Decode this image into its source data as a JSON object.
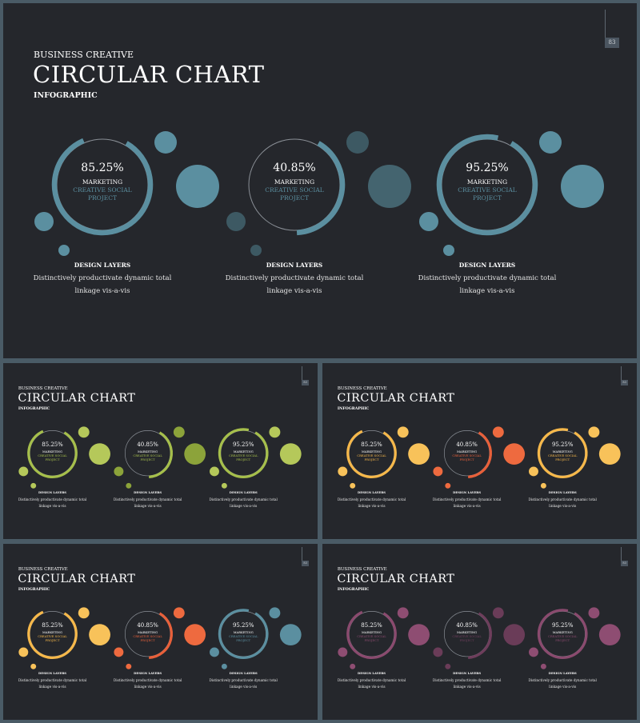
{
  "slides": [
    {
      "id": "main",
      "page_number": "83",
      "subtitle": "BUSINESS CREATIVE",
      "title": "CIRCULAR CHART",
      "tagline": "INFOGRAPHIC",
      "colors": {
        "accent": [
          "#5b8fa0",
          "#5b8fa0",
          "#5b8fa0"
        ],
        "mid": [
          "#5b8fa0",
          "#44646f",
          "#5b8fa0"
        ],
        "soft": [
          "#5b8fa0",
          "#3d5963",
          "#5b8fa0"
        ]
      },
      "charts": [
        {
          "percent": "85.25%",
          "value": 85.25,
          "line1": "MARKETING",
          "line2": "CREATIVE SOCIAL",
          "line3": "PROJECT",
          "label": "DESIGN LAYERS",
          "desc1": "Distinctively productivate dynamic total",
          "desc2": "linkage vis-a-vis"
        },
        {
          "percent": "40.85%",
          "value": 40.85,
          "line1": "MARKETING",
          "line2": "CREATIVE SOCIAL",
          "line3": "PROJECT",
          "label": "DESIGN LAYERS",
          "desc1": "Distinctively productivate dynamic total",
          "desc2": "linkage vis-a-vis"
        },
        {
          "percent": "95.25%",
          "value": 95.25,
          "line1": "MARKETING",
          "line2": "CREATIVE SOCIAL",
          "line3": "PROJECT",
          "label": "DESIGN LAYERS",
          "desc1": "Distinctively productivate dynamic total",
          "desc2": "linkage vis-a-vis"
        }
      ]
    },
    {
      "id": "green",
      "page_number": "83",
      "subtitle": "BUSINESS CREATIVE",
      "title": "CIRCULAR CHART",
      "tagline": "INFOGRAPHIC",
      "colors": {
        "accent": [
          "#a6bf4b",
          "#a6bf4b",
          "#a6bf4b"
        ],
        "mid": [
          "#b5c85a",
          "#8ca33a",
          "#b5c85a"
        ],
        "soft": [
          "#b5c85a",
          "#8ca33a",
          "#b5c85a"
        ]
      },
      "charts": [
        {
          "percent": "85.25%",
          "value": 85.25,
          "line1": "MARKETING",
          "line2": "CREATIVE SOCIAL",
          "line3": "PROJECT",
          "label": "DESIGN LAYERS",
          "desc1": "Distinctively productivate dynamic total",
          "desc2": "linkage vis-a-vis"
        },
        {
          "percent": "40.85%",
          "value": 40.85,
          "line1": "MARKETING",
          "line2": "CREATIVE SOCIAL",
          "line3": "PROJECT",
          "label": "DESIGN LAYERS",
          "desc1": "Distinctively productivate dynamic total",
          "desc2": "linkage vis-a-vis"
        },
        {
          "percent": "95.25%",
          "value": 95.25,
          "line1": "MARKETING",
          "line2": "CREATIVE SOCIAL",
          "line3": "PROJECT",
          "label": "DESIGN LAYERS",
          "desc1": "Distinctively productivate dynamic total",
          "desc2": "linkage vis-a-vis"
        }
      ]
    },
    {
      "id": "orange",
      "page_number": "83",
      "subtitle": "BUSINESS CREATIVE",
      "title": "CIRCULAR CHART",
      "tagline": "INFOGRAPHIC",
      "colors": {
        "accent": [
          "#f6b84a",
          "#e8603a",
          "#f6b84a"
        ],
        "mid": [
          "#f8c25a",
          "#ee6a3f",
          "#f8c25a"
        ],
        "soft": [
          "#f8c25a",
          "#ee6a3f",
          "#f8c25a"
        ]
      },
      "charts": [
        {
          "percent": "85.25%",
          "value": 85.25,
          "line1": "MARKETING",
          "line2": "CREATIVE SOCIAL",
          "line3": "PROJECT",
          "label": "DESIGN LAYERS",
          "desc1": "Distinctively productivate dynamic total",
          "desc2": "linkage vis-a-vis"
        },
        {
          "percent": "40.85%",
          "value": 40.85,
          "line1": "MARKETING",
          "line2": "CREATIVE SOCIAL",
          "line3": "PROJECT",
          "label": "DESIGN LAYERS",
          "desc1": "Distinctively productivate dynamic total",
          "desc2": "linkage vis-a-vis"
        },
        {
          "percent": "95.25%",
          "value": 95.25,
          "line1": "MARKETING",
          "line2": "CREATIVE SOCIAL",
          "line3": "PROJECT",
          "label": "DESIGN LAYERS",
          "desc1": "Distinctively productivate dynamic total",
          "desc2": "linkage vis-a-vis"
        }
      ]
    },
    {
      "id": "mixed",
      "page_number": "83",
      "subtitle": "BUSINESS CREATIVE",
      "title": "CIRCULAR CHART",
      "tagline": "INFOGRAPHIC",
      "colors": {
        "accent": [
          "#f6b84a",
          "#e8603a",
          "#5b8fa0"
        ],
        "mid": [
          "#f8c25a",
          "#ee6a3f",
          "#5b8fa0"
        ],
        "soft": [
          "#f8c25a",
          "#ee6a3f",
          "#5b8fa0"
        ]
      },
      "charts": [
        {
          "percent": "85.25%",
          "value": 85.25,
          "line1": "MARKETING",
          "line2": "CREATIVE SOCIAL",
          "line3": "PROJECT",
          "label": "DESIGN LAYERS",
          "desc1": "Distinctively productivate dynamic total",
          "desc2": "linkage vis-a-vis"
        },
        {
          "percent": "40.85%",
          "value": 40.85,
          "line1": "MARKETING",
          "line2": "CREATIVE SOCIAL",
          "line3": "PROJECT",
          "label": "DESIGN LAYERS",
          "desc1": "Distinctively productivate dynamic total",
          "desc2": "linkage vis-a-vis"
        },
        {
          "percent": "95.25%",
          "value": 95.25,
          "line1": "MARKETING",
          "line2": "CREATIVE SOCIAL",
          "line3": "PROJECT",
          "label": "DESIGN LAYERS",
          "desc1": "Distinctively productivate dynamic total",
          "desc2": "linkage vis-a-vis"
        }
      ]
    },
    {
      "id": "purple",
      "page_number": "83",
      "subtitle": "BUSINESS CREATIVE",
      "title": "CIRCULAR CHART",
      "tagline": "INFOGRAPHIC",
      "colors": {
        "accent": [
          "#8a4a6e",
          "#6e3e5c",
          "#8a4a6e"
        ],
        "mid": [
          "#8e4d72",
          "#6a3c58",
          "#8e4d72"
        ],
        "soft": [
          "#8e4d72",
          "#6a3c58",
          "#8e4d72"
        ]
      },
      "charts": [
        {
          "percent": "85.25%",
          "value": 85.25,
          "line1": "MARKETING",
          "line2": "CREATIVE SOCIAL",
          "line3": "PROJECT",
          "label": "DESIGN LAYERS",
          "desc1": "Distinctively productivate dynamic total",
          "desc2": "linkage vis-a-vis"
        },
        {
          "percent": "40.85%",
          "value": 40.85,
          "line1": "MARKETING",
          "line2": "CREATIVE SOCIAL",
          "line3": "PROJECT",
          "label": "DESIGN LAYERS",
          "desc1": "Distinctively productivate dynamic total",
          "desc2": "linkage vis-a-vis"
        },
        {
          "percent": "95.25%",
          "value": 95.25,
          "line1": "MARKETING",
          "line2": "CREATIVE SOCIAL",
          "line3": "PROJECT",
          "label": "DESIGN LAYERS",
          "desc1": "Distinctively productivate dynamic total",
          "desc2": "linkage vis-a-vis"
        }
      ]
    }
  ]
}
